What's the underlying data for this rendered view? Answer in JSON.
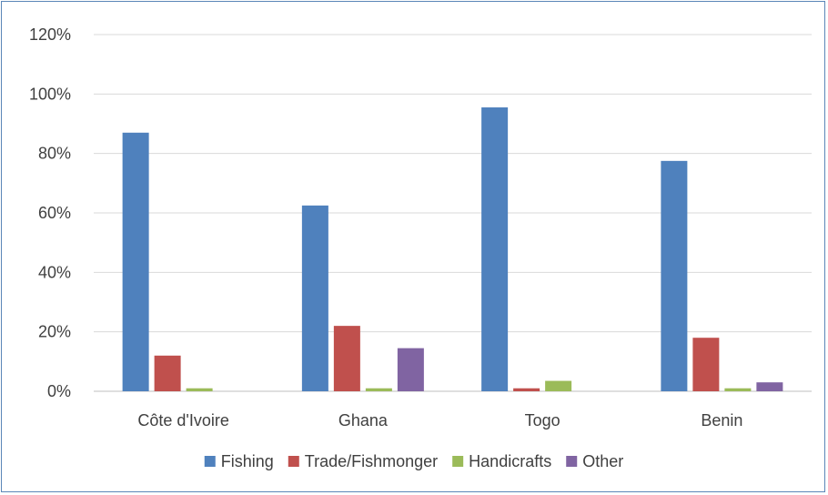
{
  "chart_data": {
    "type": "bar",
    "categories": [
      "Côte d'Ivoire",
      "Ghana",
      "Togo",
      "Benin"
    ],
    "series": [
      {
        "name": "Fishing",
        "color": "#4f81bd",
        "values": [
          87,
          62.5,
          95.5,
          77.5
        ]
      },
      {
        "name": "Trade/Fishmonger",
        "color": "#c0504d",
        "values": [
          12,
          22,
          1,
          18
        ]
      },
      {
        "name": "Handicrafts",
        "color": "#9bbb59",
        "values": [
          1,
          1,
          3.5,
          1
        ]
      },
      {
        "name": "Other",
        "color": "#8064a2",
        "values": [
          0,
          14.5,
          0,
          3
        ]
      }
    ],
    "ylim": [
      0,
      120
    ],
    "yticks": [
      0,
      20,
      40,
      60,
      80,
      100,
      120
    ],
    "ytick_labels": [
      "0%",
      "20%",
      "40%",
      "60%",
      "80%",
      "100%",
      "120%"
    ],
    "grid": true,
    "legend_position": "bottom"
  }
}
